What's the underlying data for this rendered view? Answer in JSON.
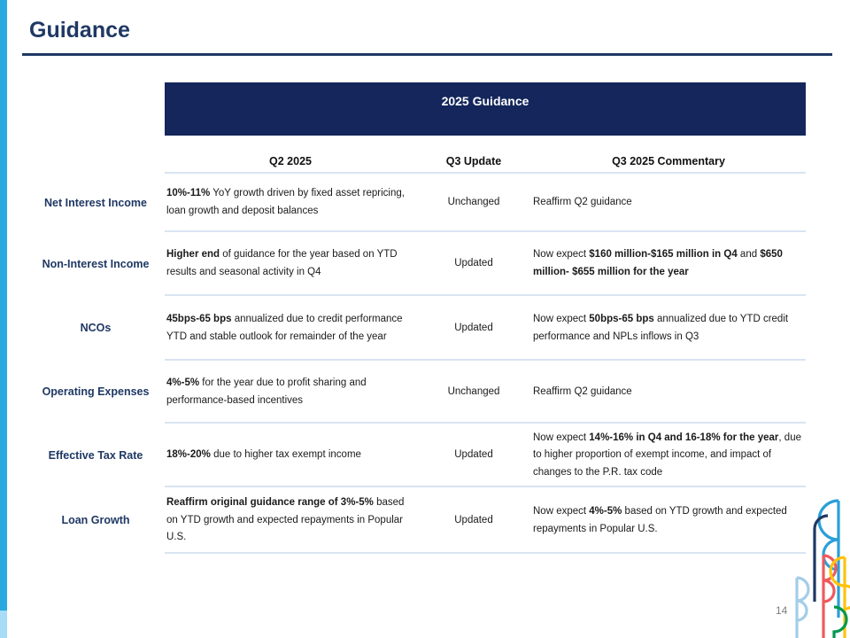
{
  "slide": {
    "title": "Guidance",
    "page_number": "14"
  },
  "table": {
    "banner": "2025 Guidance",
    "column_headers": [
      "Q2 2025",
      "Q3 Update",
      "Q3 2025 Commentary"
    ],
    "rows": [
      {
        "label": "Net Interest Income",
        "q2": [
          {
            "t": "10%-11%",
            "b": true
          },
          {
            "t": " YoY growth driven by fixed asset repricing, loan growth and deposit balances",
            "b": false
          }
        ],
        "update": "Unchanged",
        "commentary": [
          {
            "t": "Reaffirm Q2 guidance",
            "b": false
          }
        ]
      },
      {
        "label": "Non-Interest Income",
        "q2": [
          {
            "t": "Higher end",
            "b": true
          },
          {
            "t": " of guidance for the year based on YTD results and seasonal activity in Q4",
            "b": false
          }
        ],
        "update": "Updated",
        "commentary": [
          {
            "t": "Now expect ",
            "b": false
          },
          {
            "t": "$160 million-$165 million in Q4",
            "b": true
          },
          {
            "t": " and ",
            "b": false
          },
          {
            "t": "$650 million- $655 million for the year",
            "b": true
          }
        ]
      },
      {
        "label": "NCOs",
        "q2": [
          {
            "t": "45bps-65 bps",
            "b": true
          },
          {
            "t": " annualized due to credit performance YTD and stable outlook for remainder of the year",
            "b": false
          }
        ],
        "update": "Updated",
        "commentary": [
          {
            "t": "Now expect ",
            "b": false
          },
          {
            "t": "50bps-65 bps",
            "b": true
          },
          {
            "t": " annualized due to YTD credit performance and NPLs inflows in Q3",
            "b": false
          }
        ]
      },
      {
        "label": "Operating Expenses",
        "q2": [
          {
            "t": "4%-5%",
            "b": true
          },
          {
            "t": " for the year due to profit sharing and performance-based incentives",
            "b": false
          }
        ],
        "update": "Unchanged",
        "commentary": [
          {
            "t": "Reaffirm Q2 guidance",
            "b": false
          }
        ]
      },
      {
        "label": "Effective Tax Rate",
        "q2": [
          {
            "t": "18%-20%",
            "b": true
          },
          {
            "t": " due to higher tax exempt income",
            "b": false
          }
        ],
        "update": "Updated",
        "commentary": [
          {
            "t": "Now expect ",
            "b": false
          },
          {
            "t": "14%-16% in Q4 and 16-18% for the year",
            "b": true
          },
          {
            "t": ", due to higher proportion of exempt income, and impact of changes to the P.R. tax code",
            "b": false
          }
        ]
      },
      {
        "label": "Loan Growth",
        "q2": [
          {
            "t": "Reaffirm original guidance range of 3%-5%",
            "b": true
          },
          {
            "t": " based on YTD growth and expected repayments in Popular U.S.",
            "b": false
          }
        ],
        "update": "Updated",
        "commentary": [
          {
            "t": "Now expect ",
            "b": false
          },
          {
            "t": "4%-5%",
            "b": true
          },
          {
            "t": " based on YTD growth and expected repayments in Popular U.S.",
            "b": false
          }
        ]
      }
    ]
  },
  "colors": {
    "navy": "#1F3864",
    "banner_navy": "#14265B",
    "separator_blue": "#D9E4F2",
    "left_bar_blue": "#29A9E0",
    "left_bar_light_blue": "#A6DCF5",
    "page_number_gray": "#7F7F7F",
    "logo": {
      "sky_blue": "#2B9FD8",
      "light_blue": "#A3CDE9",
      "navy": "#1F3864",
      "red": "#F0595C",
      "yellow": "#FFC20E",
      "green": "#009950"
    }
  }
}
